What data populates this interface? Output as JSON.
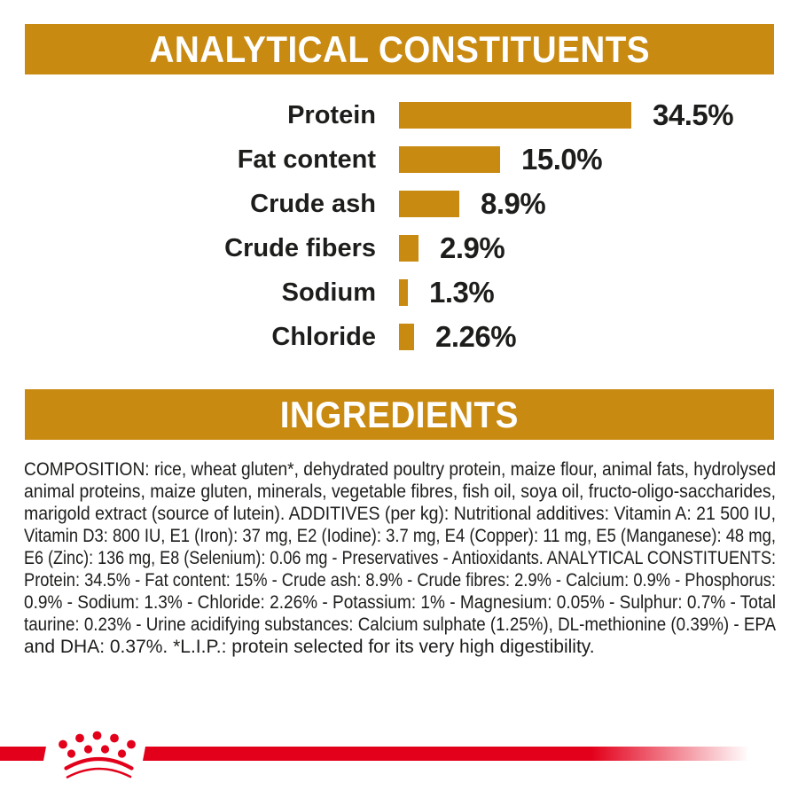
{
  "colors": {
    "gold": "#C98A12",
    "red": "#E3001B",
    "text": "#1D1D1B",
    "banner_text": "#FFFFFF"
  },
  "sections": {
    "analytical_banner_title": "ANALYTICAL CONSTITUENTS",
    "ingredients_banner_title": "INGREDIENTS"
  },
  "chart_data": {
    "type": "bar",
    "orientation": "horizontal",
    "title": "ANALYTICAL CONSTITUENTS",
    "categories": [
      "Protein",
      "Fat content",
      "Crude ash",
      "Crude fibers",
      "Sodium",
      "Chloride"
    ],
    "values": [
      34.5,
      15.0,
      8.9,
      2.9,
      1.3,
      2.26
    ],
    "value_labels": [
      "34.5%",
      "15.0%",
      "8.9%",
      "2.9%",
      "1.3%",
      "2.26%"
    ],
    "unit": "%",
    "xlim": [
      0,
      36
    ],
    "grid": false,
    "legend": false,
    "bar_color": "#C98A12"
  },
  "ingredients_text": {
    "lines": [
      "COMPOSITION: rice, wheat gluten*, dehydrated poultry protein, maize flour, animal fats, hydrolysed",
      "animal proteins, maize gluten, minerals, vegetable fibres, fish oil, soya oil, fructo-oligo-saccharides,",
      "marigold extract (source of lutein). ADDITIVES (per kg): Nutritional additives: Vitamin A: 21 500 IU,",
      "Vitamin D3: 800 IU, E1 (Iron): 37 mg, E2 (Iodine): 3.7 mg, E4 (Copper): 11 mg, E5 (Manganese): 48 mg,",
      "E6 (Zinc): 136 mg, E8 (Selenium): 0.06 mg - Preservatives - Antioxidants. ANALYTICAL CONSTITUENTS:",
      "Protein: 34.5% - Fat content: 15% - Crude ash: 8.9% - Crude fibres: 2.9% - Calcium: 0.9% - Phosphorus:",
      "0.9% - Sodium: 1.3% - Chloride: 2.26% - Potassium: 1% - Magnesium: 0.05% - Sulphur: 0.7% - Total",
      "taurine: 0.23% - Urine acidifying substances: Calcium sulphate (1.25%), DL-methionine (0.39%) - EPA",
      "and DHA: 0.37%. *L.I.P.: protein selected for its very high digestibility."
    ]
  },
  "footer": {
    "logo_icon": "royal-canin-crown"
  }
}
